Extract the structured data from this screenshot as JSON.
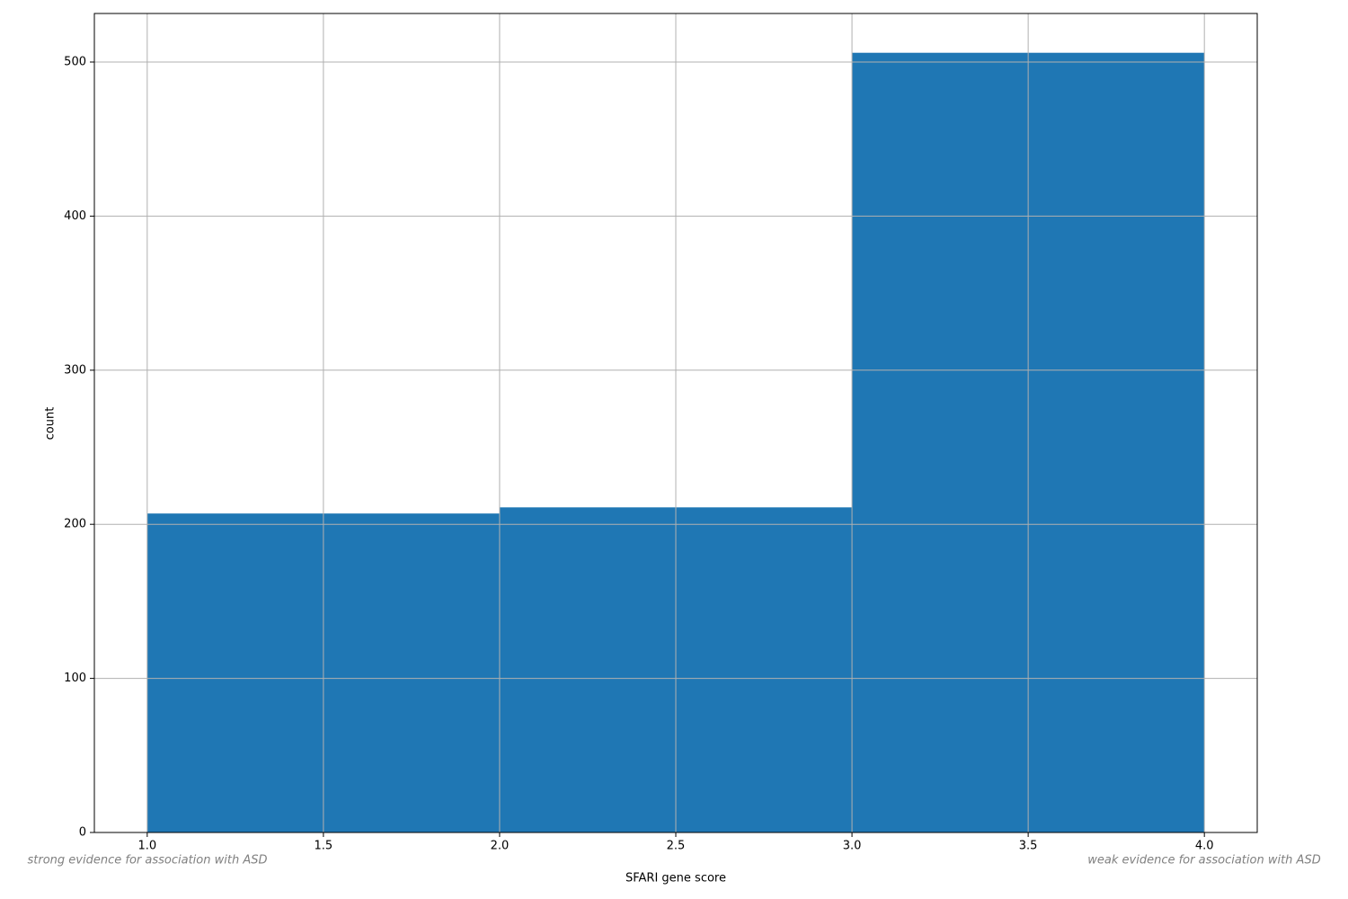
{
  "chart_data": {
    "type": "histogram",
    "x_label": "SFARI gene score",
    "y_label": "count",
    "bins": [
      1,
      2,
      3,
      4
    ],
    "counts": [
      207,
      211,
      506
    ],
    "color": "#1f77b4",
    "xlim": [
      0.85,
      4.15
    ],
    "ylim": [
      0,
      531.5
    ],
    "xticks": [
      {
        "value": 1,
        "label": "1.0"
      },
      {
        "value": 1.5,
        "label": "1.5"
      },
      {
        "value": 2,
        "label": "2.0"
      },
      {
        "value": 2.5,
        "label": "2.5"
      },
      {
        "value": 3,
        "label": "3.0"
      },
      {
        "value": 3.5,
        "label": "3.5"
      },
      {
        "value": 4,
        "label": "4.0"
      }
    ],
    "yticks": [
      0,
      100,
      200,
      300,
      400,
      500
    ],
    "grid": true,
    "annotations": [
      "strong evidence for association with ASD",
      "weak evidence for association with ASD"
    ]
  }
}
